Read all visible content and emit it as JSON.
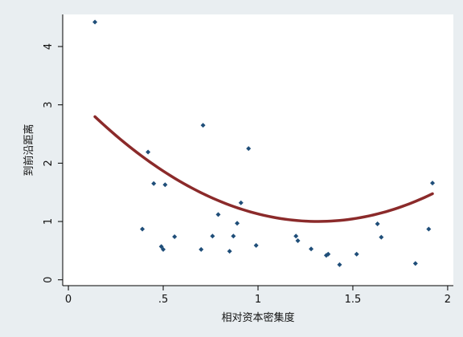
{
  "chart_data": {
    "type": "scatter",
    "title": "",
    "xlabel": "相对资本密集度",
    "ylabel": "到前沿距离",
    "xlim": [
      -0.03,
      2.03
    ],
    "ylim": [
      -0.1,
      4.55
    ],
    "x_ticks": [
      {
        "value": 0,
        "label": "0"
      },
      {
        "value": 0.5,
        "label": ".5"
      },
      {
        "value": 1,
        "label": "1"
      },
      {
        "value": 1.5,
        "label": "1.5"
      },
      {
        "value": 2,
        "label": "2"
      }
    ],
    "y_ticks": [
      {
        "value": 0,
        "label": "0"
      },
      {
        "value": 1,
        "label": "1"
      },
      {
        "value": 2,
        "label": "2"
      },
      {
        "value": 3,
        "label": "3"
      },
      {
        "value": 4,
        "label": "4"
      }
    ],
    "grid": false,
    "series": [
      {
        "type": "scatter",
        "color": "#1f4e79",
        "points": [
          [
            0.14,
            4.42
          ],
          [
            0.39,
            0.87
          ],
          [
            0.42,
            2.19
          ],
          [
            0.45,
            1.65
          ],
          [
            0.49,
            0.57
          ],
          [
            0.5,
            0.52
          ],
          [
            0.51,
            1.63
          ],
          [
            0.56,
            0.74
          ],
          [
            0.7,
            0.52
          ],
          [
            0.71,
            2.65
          ],
          [
            0.76,
            0.75
          ],
          [
            0.79,
            1.12
          ],
          [
            0.85,
            0.49
          ],
          [
            0.87,
            0.75
          ],
          [
            0.89,
            0.97
          ],
          [
            0.91,
            1.32
          ],
          [
            0.95,
            2.25
          ],
          [
            0.99,
            0.59
          ],
          [
            1.2,
            0.75
          ],
          [
            1.21,
            0.67
          ],
          [
            1.28,
            0.53
          ],
          [
            1.36,
            0.42
          ],
          [
            1.37,
            0.44
          ],
          [
            1.43,
            0.26
          ],
          [
            1.52,
            0.44
          ],
          [
            1.63,
            0.96
          ],
          [
            1.65,
            0.73
          ],
          [
            1.83,
            0.28
          ],
          [
            1.9,
            0.87
          ],
          [
            1.92,
            1.66
          ]
        ]
      },
      {
        "type": "line",
        "color": "#8b2a2a",
        "fit": {
          "form": "quadratic",
          "a": 1.3,
          "b": -3.42,
          "c": 3.25
        },
        "x_range": [
          0.14,
          1.92
        ]
      }
    ]
  }
}
